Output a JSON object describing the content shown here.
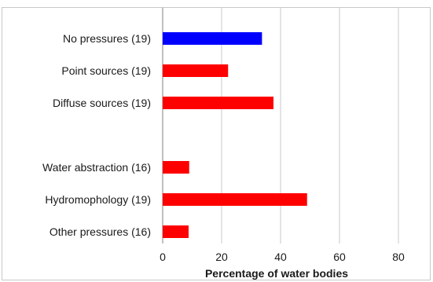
{
  "chart_data": {
    "type": "bar",
    "orientation": "horizontal",
    "categories": [
      "No pressures (19)",
      "Point sources (19)",
      "Diffuse sources (19)",
      "",
      "Water abstraction (16)",
      "Hydromophology (19)",
      "Other pressures (16)"
    ],
    "values": [
      33.7,
      22.2,
      37.6,
      null,
      9.0,
      49.0,
      8.8
    ],
    "bar_colors": [
      "#0000ff",
      "#ff0000",
      "#ff0000",
      null,
      "#ff0000",
      "#ff0000",
      "#ff0000"
    ],
    "xlabel": "Percentage of water bodies",
    "xlim": [
      0,
      80
    ],
    "xticks": [
      0,
      20,
      40,
      60,
      80
    ],
    "xtick_labels": [
      "0",
      "20",
      "40",
      "60",
      "80"
    ],
    "grid": "vertical",
    "legend": "none"
  },
  "colors": {
    "grid": "#c8c8c8",
    "axis": "#808080"
  }
}
